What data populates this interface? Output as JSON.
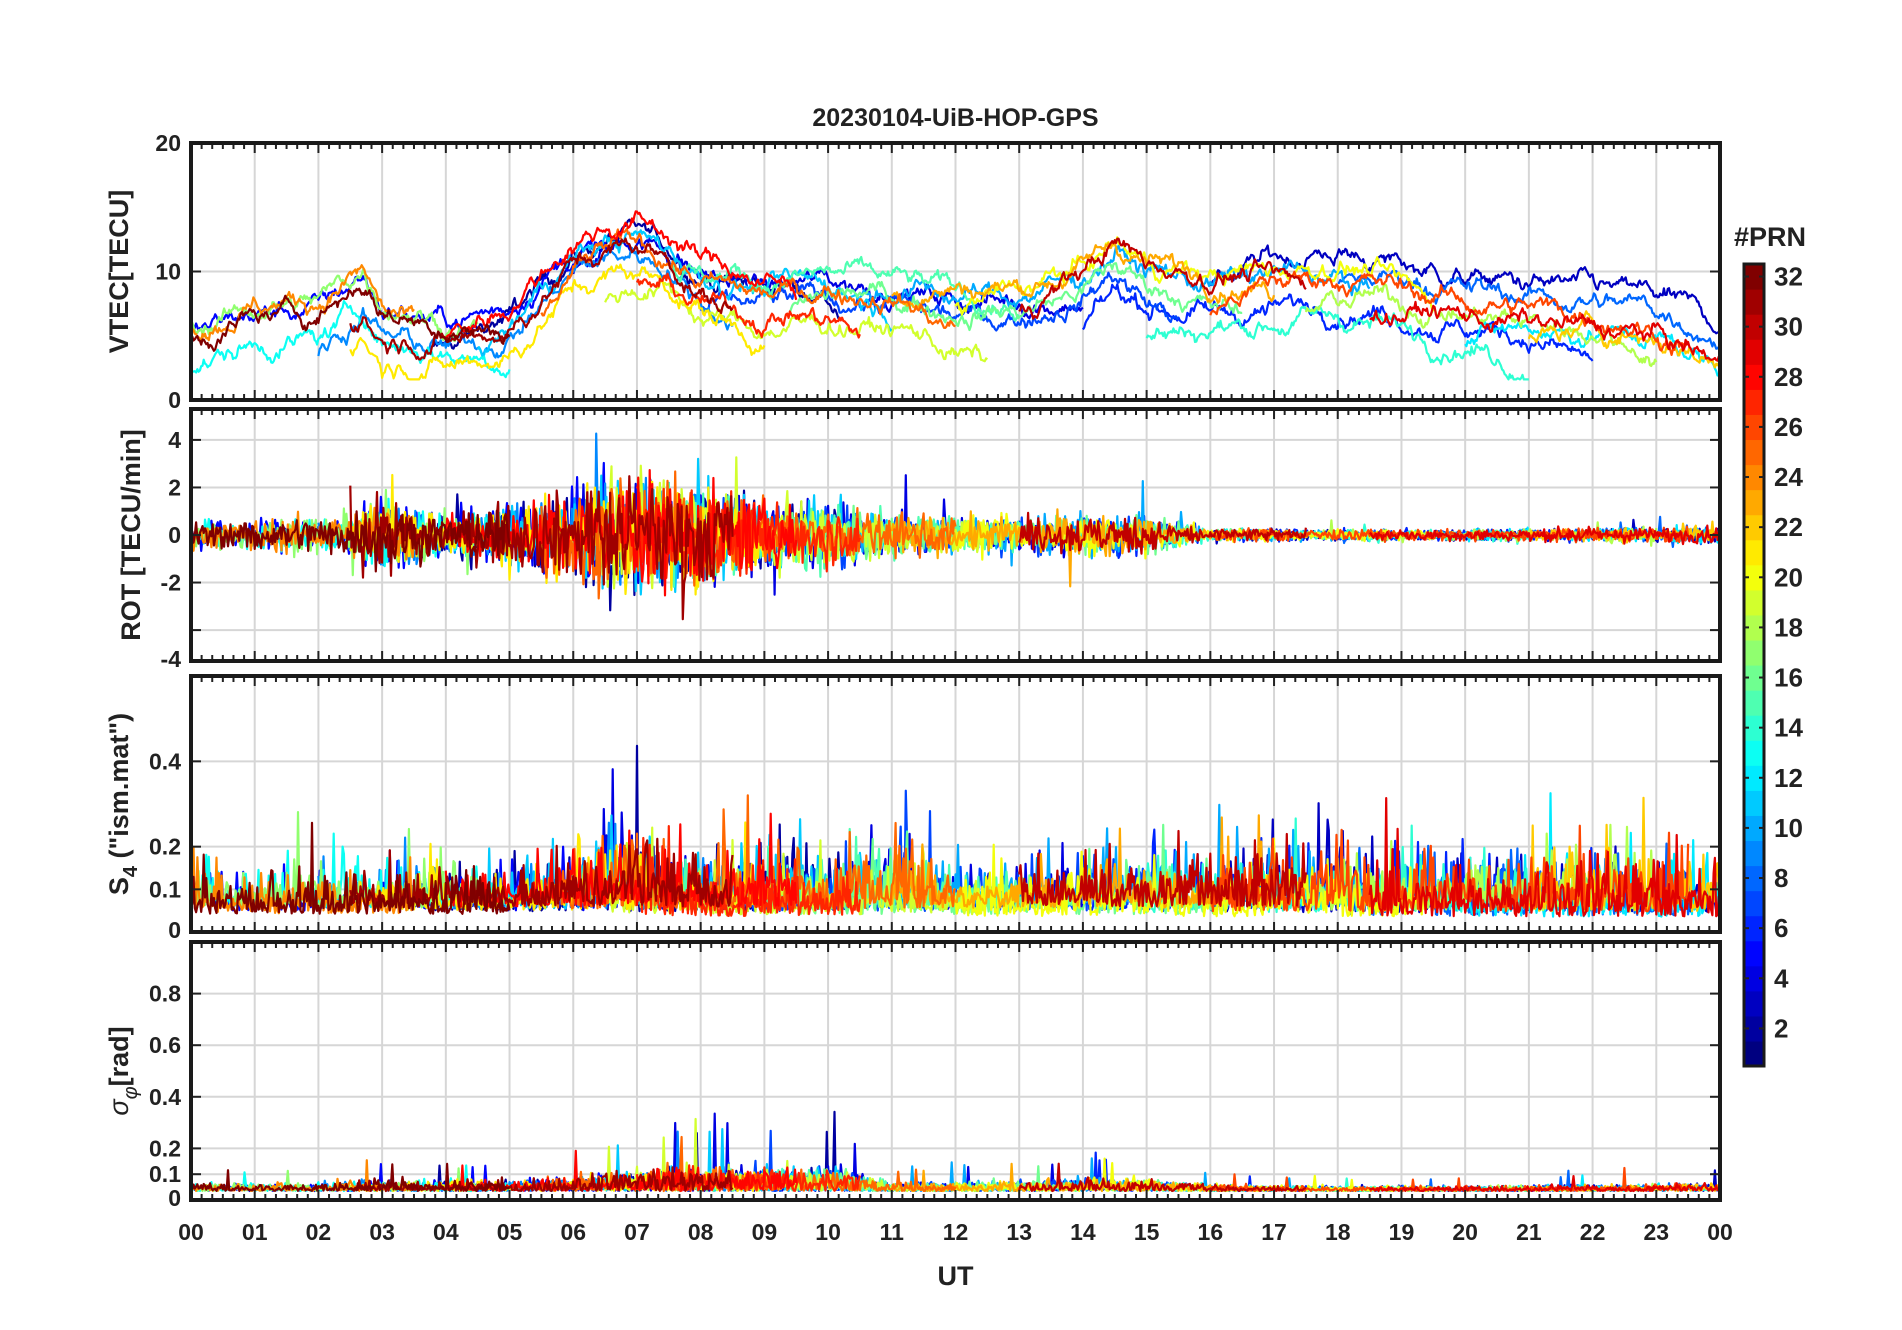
{
  "chart_data": [
    {
      "id": "vtec",
      "type": "line",
      "title": "20230104-UiB-HOP-GPS",
      "ylabel": "VTEC[TECU]",
      "ylim": [
        0,
        20
      ],
      "yticks": [
        0,
        10,
        20
      ],
      "ytick_labels": [
        "0",
        "10",
        "20"
      ],
      "grid": true,
      "baseline": [
        [
          0,
          5
        ],
        [
          1,
          5
        ],
        [
          2,
          5.5
        ],
        [
          2.7,
          8
        ],
        [
          3,
          5.5
        ],
        [
          4,
          4.5
        ],
        [
          5,
          5.5
        ],
        [
          5.5,
          8
        ],
        [
          6,
          10.5
        ],
        [
          6.5,
          11.5
        ],
        [
          7,
          12
        ],
        [
          7.5,
          11
        ],
        [
          8,
          9
        ],
        [
          9,
          8
        ],
        [
          10,
          8.5
        ],
        [
          11,
          8
        ],
        [
          12,
          7
        ],
        [
          13,
          7
        ],
        [
          14,
          8.5
        ],
        [
          14.5,
          10.5
        ],
        [
          15,
          9
        ],
        [
          16,
          8
        ],
        [
          17,
          8.5
        ],
        [
          18,
          9
        ],
        [
          19,
          8
        ],
        [
          20,
          7
        ],
        [
          21,
          6.5
        ],
        [
          22,
          6
        ],
        [
          23,
          5.5
        ],
        [
          24,
          5
        ]
      ],
      "spread": 2.6,
      "noise": 0.45
    },
    {
      "id": "rot",
      "type": "line",
      "ylabel": "ROT [TECU/min]",
      "ylim": [
        -5.3,
        5.3
      ],
      "yticks": [
        -4,
        -2,
        0,
        2,
        4
      ],
      "ytick_labels": [
        "-4",
        "-2",
        "0",
        "2",
        "4"
      ],
      "grid": true,
      "envelope": [
        [
          0,
          0.9
        ],
        [
          2.5,
          1.5
        ],
        [
          3,
          2.8
        ],
        [
          4,
          1.4
        ],
        [
          5,
          2.3
        ],
        [
          6,
          3.2
        ],
        [
          7,
          4.2
        ],
        [
          8,
          3.8
        ],
        [
          9,
          2.4
        ],
        [
          10,
          2.2
        ],
        [
          11,
          1.5
        ],
        [
          12,
          1.3
        ],
        [
          13,
          1.2
        ],
        [
          14,
          1.5
        ],
        [
          15,
          1.3
        ],
        [
          16,
          0.5
        ],
        [
          18,
          0.4
        ],
        [
          20,
          0.4
        ],
        [
          22,
          0.5
        ],
        [
          24,
          0.6
        ]
      ]
    },
    {
      "id": "s4",
      "type": "line",
      "ylabel": "S4 (\"ism.mat\")",
      "ylabel_main": "S",
      "ylabel_sub": "4",
      "ylabel_rest": " (\"ism.mat\")",
      "ylim": [
        0,
        0.6
      ],
      "yticks": [
        0,
        0.1,
        0.2,
        0.4
      ],
      "ytick_labels": [
        "0",
        "0.1",
        "0.2",
        "0.4"
      ],
      "grid": true,
      "envelope": [
        [
          0,
          0.22
        ],
        [
          1,
          0.14
        ],
        [
          2,
          0.2
        ],
        [
          3,
          0.16
        ],
        [
          4,
          0.2
        ],
        [
          5,
          0.16
        ],
        [
          6,
          0.25
        ],
        [
          6.8,
          0.4
        ],
        [
          7.5,
          0.22
        ],
        [
          8,
          0.2
        ],
        [
          9,
          0.26
        ],
        [
          10,
          0.22
        ],
        [
          11,
          0.3
        ],
        [
          12,
          0.16
        ],
        [
          13,
          0.18
        ],
        [
          14,
          0.2
        ],
        [
          15,
          0.25
        ],
        [
          16,
          0.2
        ],
        [
          17,
          0.28
        ],
        [
          18,
          0.28
        ],
        [
          19,
          0.22
        ],
        [
          20,
          0.26
        ],
        [
          21,
          0.24
        ],
        [
          22,
          0.3
        ],
        [
          23,
          0.25
        ],
        [
          24,
          0.2
        ]
      ]
    },
    {
      "id": "sigma",
      "type": "line",
      "ylabel": "σφ[rad]",
      "ylabel_main": "σ",
      "ylabel_sub": "φ",
      "ylabel_rest": "[rad]",
      "ylim": [
        0,
        1.0
      ],
      "yticks": [
        0,
        0.1,
        0.2,
        0.4,
        0.6,
        0.8
      ],
      "ytick_labels": [
        "0",
        "0.1",
        "0.2",
        "0.4",
        "0.6",
        "0.8"
      ],
      "grid": true,
      "envelope": [
        [
          0,
          0.05
        ],
        [
          2,
          0.05
        ],
        [
          3,
          0.07
        ],
        [
          4,
          0.06
        ],
        [
          5,
          0.06
        ],
        [
          6,
          0.09
        ],
        [
          7,
          0.13
        ],
        [
          8,
          0.15
        ],
        [
          9,
          0.14
        ],
        [
          10,
          0.16
        ],
        [
          11,
          0.05
        ],
        [
          13,
          0.06
        ],
        [
          14,
          0.08
        ],
        [
          15,
          0.07
        ],
        [
          16,
          0.04
        ],
        [
          18,
          0.03
        ],
        [
          20,
          0.03
        ],
        [
          22,
          0.04
        ],
        [
          24,
          0.05
        ]
      ]
    }
  ],
  "xaxis": {
    "label": "UT",
    "range": [
      0,
      24
    ],
    "tick_labels": [
      "00",
      "01",
      "02",
      "03",
      "04",
      "05",
      "06",
      "07",
      "08",
      "09",
      "10",
      "11",
      "12",
      "13",
      "14",
      "15",
      "16",
      "17",
      "18",
      "19",
      "20",
      "21",
      "22",
      "23",
      "00"
    ]
  },
  "colorbar": {
    "title": "#PRN",
    "range": [
      1,
      32
    ],
    "ticks": [
      2,
      4,
      6,
      8,
      10,
      12,
      14,
      16,
      18,
      20,
      22,
      24,
      26,
      28,
      30,
      32
    ],
    "tick_labels": [
      "2",
      "4",
      "6",
      "8",
      "10",
      "12",
      "14",
      "16",
      "18",
      "20",
      "22",
      "24",
      "26",
      "28",
      "30",
      "32"
    ],
    "colormap": "jet"
  },
  "satellites": [
    {
      "prn": 2,
      "start": 3.8,
      "end": 10.2
    },
    {
      "prn": 3,
      "start": 16.0,
      "end": 24.0
    },
    {
      "prn": 4,
      "start": 6.0,
      "end": 14.0
    },
    {
      "prn": 5,
      "start": 0.0,
      "end": 6.5
    },
    {
      "prn": 6,
      "start": 14.0,
      "end": 22.0
    },
    {
      "prn": 7,
      "start": 8.0,
      "end": 15.5
    },
    {
      "prn": 8,
      "start": 18.0,
      "end": 24.0
    },
    {
      "prn": 9,
      "start": 2.0,
      "end": 8.5
    },
    {
      "prn": 10,
      "start": 10.5,
      "end": 18.5
    },
    {
      "prn": 11,
      "start": 4.5,
      "end": 11.0
    },
    {
      "prn": 12,
      "start": 20.0,
      "end": 24.0
    },
    {
      "prn": 13,
      "start": 0.0,
      "end": 5.0
    },
    {
      "prn": 14,
      "start": 15.0,
      "end": 21.0
    },
    {
      "prn": 15,
      "start": 7.5,
      "end": 13.0
    },
    {
      "prn": 16,
      "start": 9.4,
      "end": 16.5
    },
    {
      "prn": 17,
      "start": 0.0,
      "end": 4.5
    },
    {
      "prn": 18,
      "start": 17.5,
      "end": 23.0
    },
    {
      "prn": 19,
      "start": 6.5,
      "end": 12.5
    },
    {
      "prn": 20,
      "start": 12.0,
      "end": 19.5
    },
    {
      "prn": 21,
      "start": 2.5,
      "end": 9.0
    },
    {
      "prn": 22,
      "start": 21.0,
      "end": 24.0
    },
    {
      "prn": 23,
      "start": 11.0,
      "end": 17.0
    },
    {
      "prn": 24,
      "start": 0.0,
      "end": 3.5
    },
    {
      "prn": 25,
      "start": 5.5,
      "end": 12.0
    },
    {
      "prn": 26,
      "start": 16.0,
      "end": 23.5
    },
    {
      "prn": 27,
      "start": 7.0,
      "end": 10.5
    },
    {
      "prn": 28,
      "start": 4.0,
      "end": 9.5
    },
    {
      "prn": 29,
      "start": 18.5,
      "end": 24.0
    },
    {
      "prn": 30,
      "start": 13.0,
      "end": 17.5
    },
    {
      "prn": 31,
      "start": 2.5,
      "end": 8.5
    },
    {
      "prn": 32,
      "start": 0.0,
      "end": 5.0
    }
  ]
}
